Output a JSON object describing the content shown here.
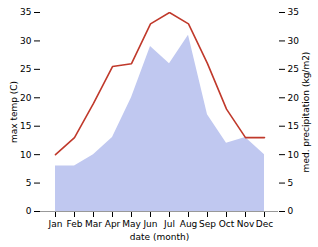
{
  "chart_data": {
    "type": "line",
    "categories": [
      "Jan",
      "Feb",
      "Mar",
      "Apr",
      "May",
      "Jun",
      "Jul",
      "Aug",
      "Sep",
      "Oct",
      "Nov",
      "Dec"
    ],
    "xlabel": "date (month)",
    "ylabel": "max temp (C)",
    "y2label": "med. precipitation (kg/m2)",
    "ylim": [
      0,
      35
    ],
    "yticks": [
      0,
      5,
      10,
      15,
      20,
      25,
      30,
      35
    ],
    "y2lim": [
      0,
      35
    ],
    "y2ticks": [
      0,
      5,
      10,
      15,
      20,
      25,
      30,
      35
    ],
    "grid": false,
    "series": [
      {
        "type": "area",
        "color": "#c0c8f0",
        "axis": "y2",
        "values": [
          8,
          8,
          10,
          13,
          20,
          29,
          26,
          31,
          17,
          12,
          13,
          10
        ]
      },
      {
        "type": "line",
        "color": "#c0392b",
        "values": [
          10,
          13,
          19,
          25.5,
          26,
          33,
          35,
          33,
          26,
          18,
          13,
          13
        ]
      }
    ]
  }
}
